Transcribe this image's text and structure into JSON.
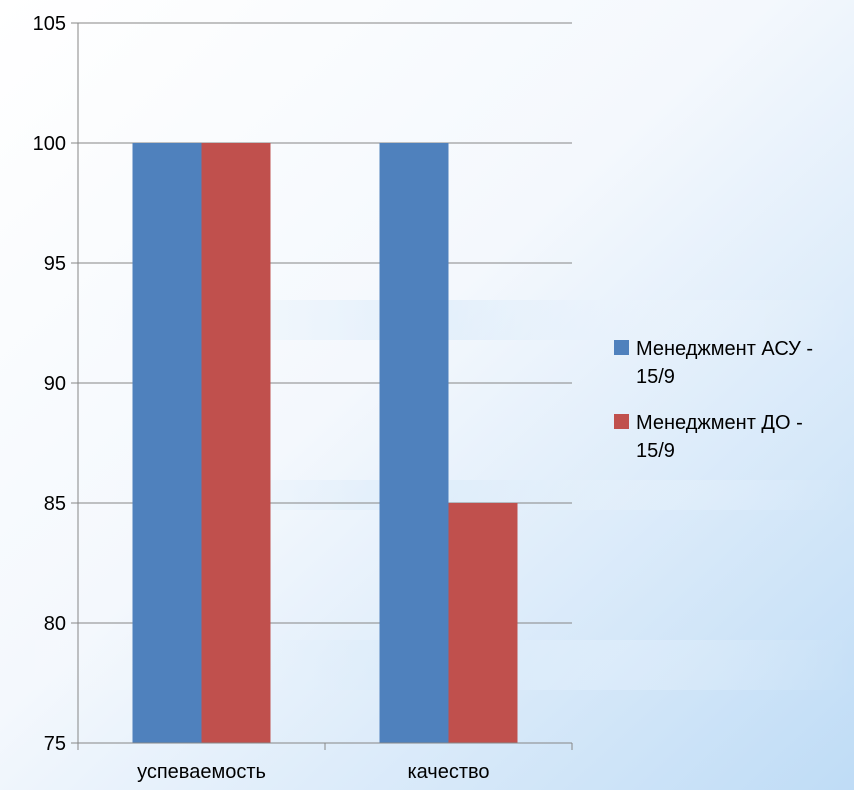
{
  "chart_data": {
    "type": "bar",
    "title": "",
    "xlabel": "",
    "ylabel": "",
    "categories": [
      "успеваемость",
      "качество"
    ],
    "series": [
      {
        "name": "Менеджмент АСУ - 15/9",
        "values": [
          100,
          100
        ],
        "color": "#4F81BD"
      },
      {
        "name": "Менеджмент ДО - 15/9",
        "values": [
          100,
          85
        ],
        "color": "#C0504D"
      }
    ],
    "ylim": [
      75,
      105
    ],
    "yticks": [
      "75",
      "80",
      "85",
      "90",
      "95",
      "100",
      "105"
    ],
    "grid": true,
    "legend": "right",
    "legend_entries": [
      {
        "lines": [
          "Менеджмент АСУ -",
          "15/9"
        ],
        "color": "#4F81BD"
      },
      {
        "lines": [
          "Менеджмент ДО -",
          "15/9"
        ],
        "color": "#C0504D"
      }
    ]
  }
}
